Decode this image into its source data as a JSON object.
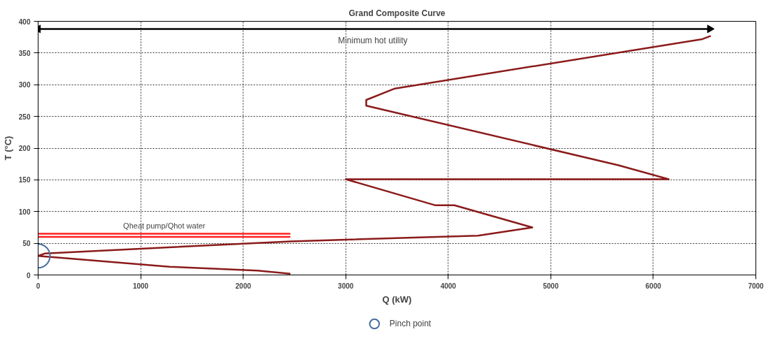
{
  "chart_data": {
    "type": "line",
    "title": "Grand Composite Curve",
    "xlabel": "Q (kW)",
    "ylabel": "T (°C)",
    "xlim": [
      0,
      7000
    ],
    "xticks": [
      0,
      1000,
      2000,
      3000,
      4000,
      5000,
      6000,
      7000
    ],
    "ylim": [
      0,
      400
    ],
    "yticks": [
      0,
      50,
      100,
      150,
      200,
      250,
      300,
      350,
      400
    ],
    "grid": true,
    "legend": "bottom",
    "line_style": "solid",
    "marker": "none",
    "series": [
      {
        "color": "#8b1a1a",
        "x": [
          2460,
          2140,
          1280,
          0,
          68,
          2460,
          4290,
          4820,
          4060,
          3870,
          3000,
          6150,
          5660,
          3200,
          3200,
          3480,
          6480,
          6560
        ],
        "values": [
          2,
          7,
          13,
          30,
          34,
          53,
          62,
          75,
          110,
          110,
          151,
          151,
          173,
          267,
          276,
          294,
          372,
          377
        ]
      },
      {
        "name": "Qheat pump/Qhot water",
        "color": "#ff2020",
        "x": [
          0,
          2460
        ],
        "values": [
          65,
          65
        ]
      },
      {
        "color": "#ff2020",
        "x": [
          0,
          2460
        ],
        "values": [
          60,
          60
        ]
      },
      {
        "type": "line",
        "name": "Minimum  hot utility",
        "marker": "triangle",
        "color": "#000000",
        "x": [
          0,
          6550
        ],
        "values": [
          388,
          388
        ]
      },
      {
        "type": "scatter",
        "name": "Pinch point",
        "marker": "circle",
        "color": "#4a6ea0",
        "x": [
          0
        ],
        "values": [
          30
        ]
      }
    ]
  }
}
